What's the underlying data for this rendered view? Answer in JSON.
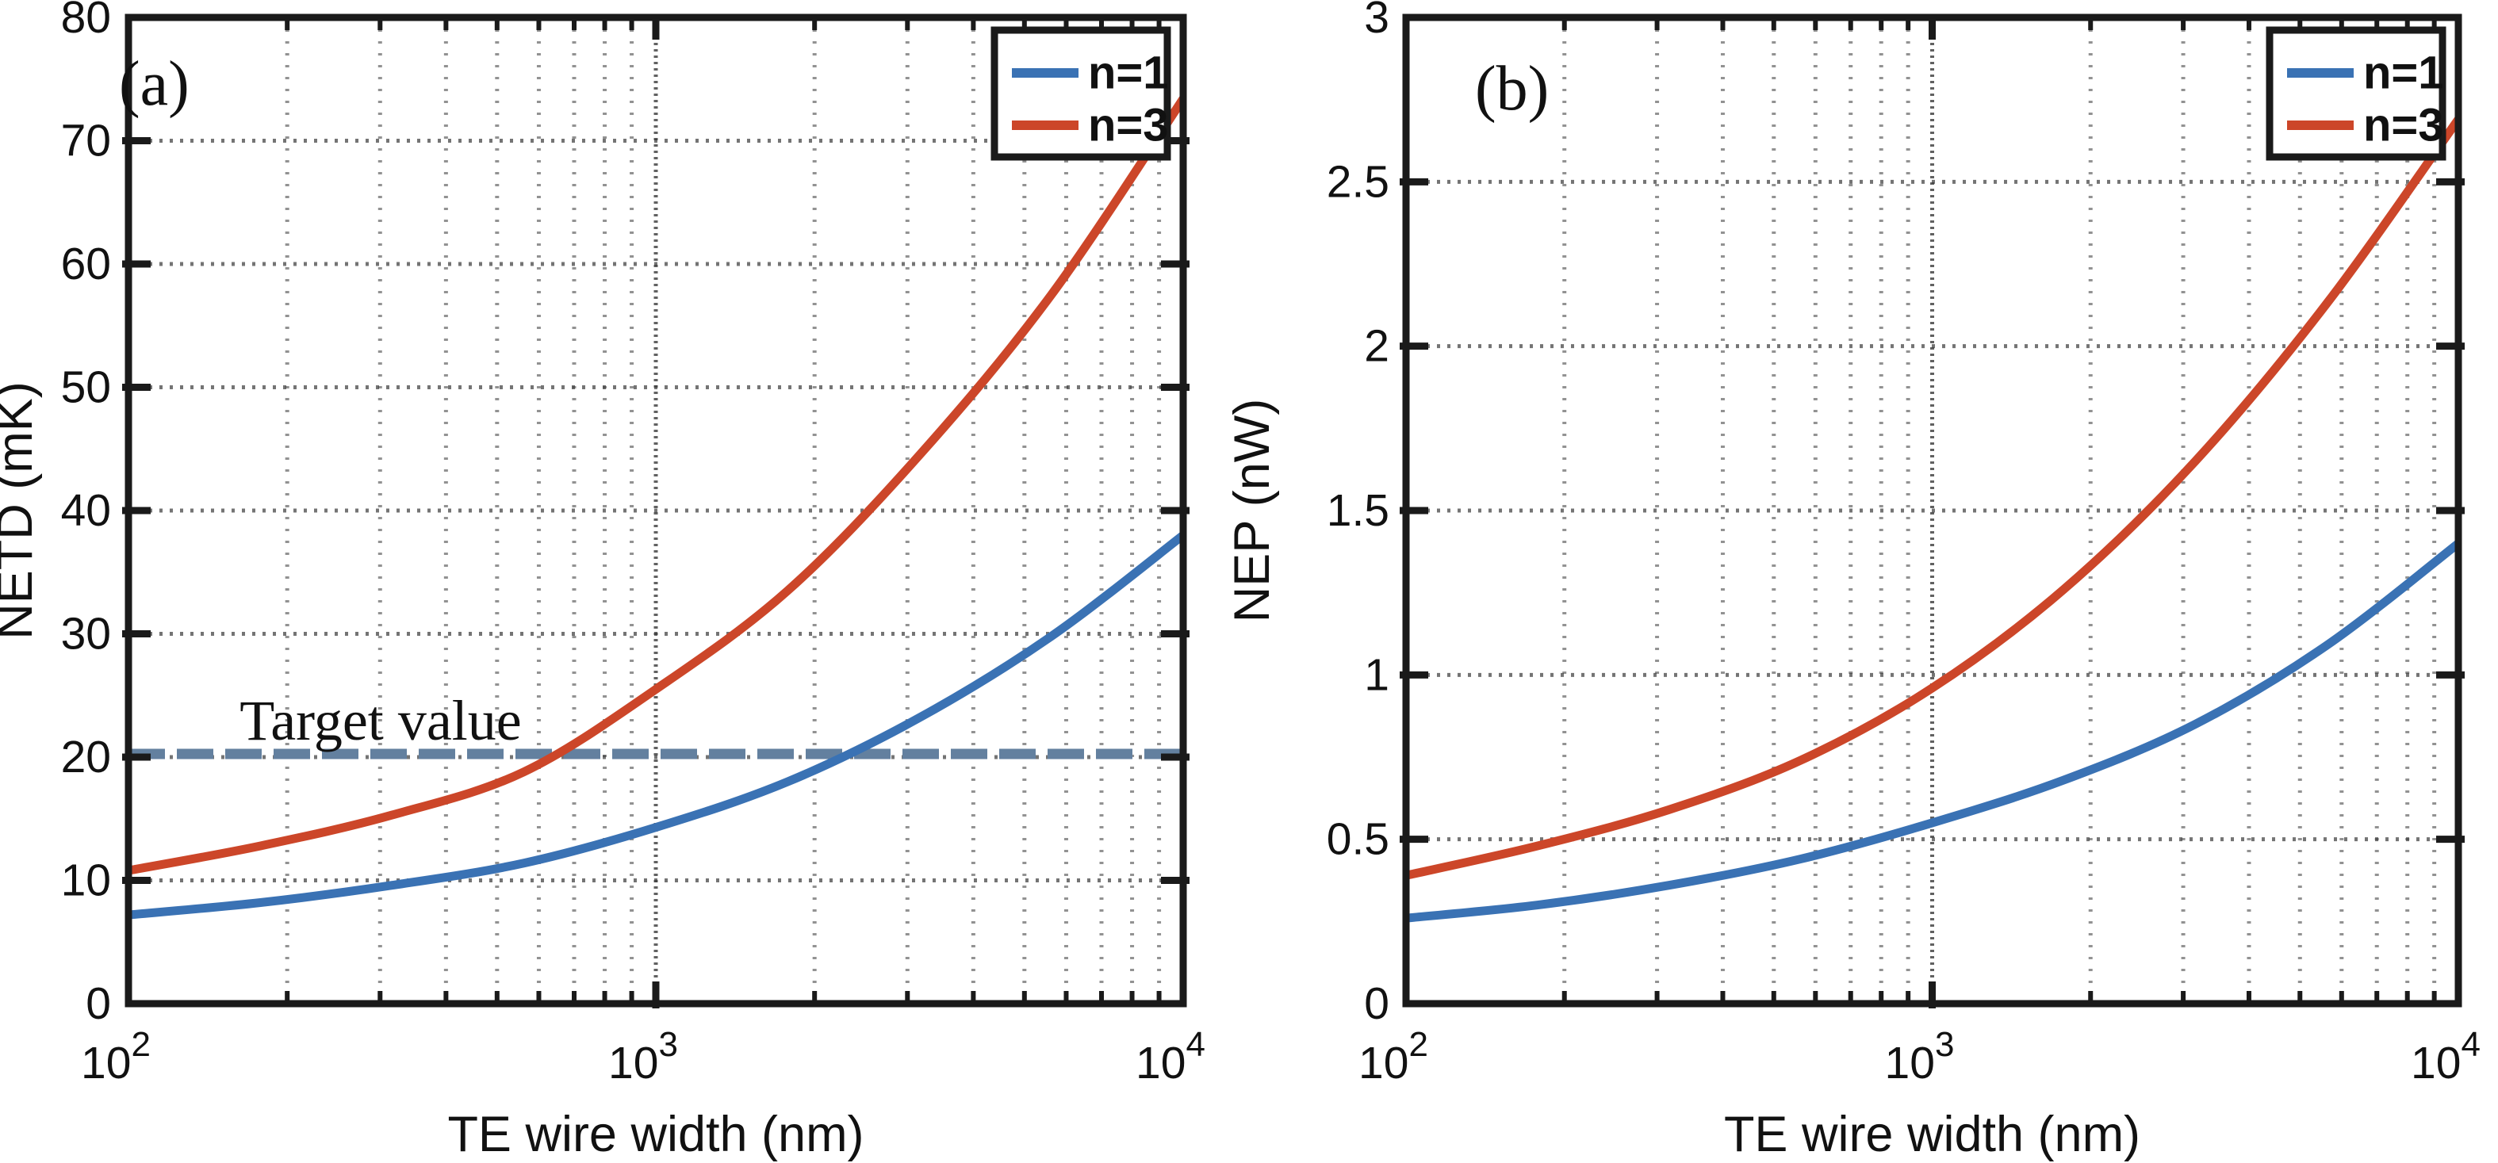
{
  "figure": {
    "description": "Two-panel line figure: NETD and NEP versus thermoelectric wire width",
    "axis_color": "#1a1a1a",
    "grid_color": "#3a3a3a",
    "background": "#ffffff"
  },
  "chart_data": [
    {
      "type": "line",
      "panel_label": "(a)",
      "title": "",
      "xlabel": "TE wire width (nm)",
      "ylabel": "NETD (mK)",
      "x_scale": "log",
      "xlim": [
        100,
        10000
      ],
      "ylim": [
        0,
        80
      ],
      "grid": "on",
      "legend_position": "top-right",
      "x_tick_labels": [
        {
          "base": "10",
          "exp": "2"
        },
        {
          "base": "10",
          "exp": "3"
        },
        {
          "base": "10",
          "exp": "4"
        }
      ],
      "y_tick_labels": [
        "0",
        "10",
        "20",
        "30",
        "40",
        "50",
        "60",
        "70",
        "80"
      ],
      "y_gridlines": [
        10,
        20,
        30,
        40,
        50,
        60,
        70
      ],
      "x": [
        100,
        178,
        316,
        562,
        1000,
        1778,
        3162,
        5623,
        10000
      ],
      "series": [
        {
          "name": "n=1",
          "color": "#3a72b4",
          "values": [
            7.2,
            8.2,
            9.6,
            11.4,
            14.3,
            18.0,
            23.2,
            29.8,
            38.0
          ]
        },
        {
          "name": "n=3",
          "color": "#cc4629",
          "values": [
            10.8,
            12.8,
            15.3,
            18.8,
            25.5,
            33.5,
            44.5,
            57.5,
            73.4
          ]
        }
      ],
      "annotations": [
        {
          "type": "hline",
          "label": "Target value",
          "y": 20,
          "style": "dashed",
          "color": "#63809f"
        }
      ]
    },
    {
      "type": "line",
      "panel_label": "(b)",
      "title": "",
      "xlabel": "TE wire width (nm)",
      "ylabel": "NEP (nW)",
      "x_scale": "log",
      "xlim": [
        100,
        10000
      ],
      "ylim": [
        0,
        3
      ],
      "grid": "on",
      "legend_position": "top-right",
      "x_tick_labels": [
        {
          "base": "10",
          "exp": "2"
        },
        {
          "base": "10",
          "exp": "3"
        },
        {
          "base": "10",
          "exp": "4"
        }
      ],
      "y_tick_labels": [
        "0",
        "0.5",
        "1",
        "1.5",
        "2",
        "2.5",
        "3"
      ],
      "y_gridlines": [
        0.5,
        1,
        1.5,
        2,
        2.5
      ],
      "x": [
        100,
        178,
        316,
        562,
        1000,
        1778,
        3162,
        5623,
        10000
      ],
      "series": [
        {
          "name": "n=1",
          "color": "#3a72b4",
          "values": [
            0.26,
            0.3,
            0.36,
            0.44,
            0.55,
            0.68,
            0.85,
            1.09,
            1.4
          ]
        },
        {
          "name": "n=3",
          "color": "#cc4629",
          "values": [
            0.39,
            0.48,
            0.59,
            0.74,
            0.96,
            1.26,
            1.65,
            2.13,
            2.69
          ]
        }
      ],
      "annotations": []
    }
  ],
  "legend": {
    "entries": [
      {
        "label": "n=1",
        "color": "#3a72b4"
      },
      {
        "label": "n=3",
        "color": "#cc4629"
      }
    ]
  }
}
